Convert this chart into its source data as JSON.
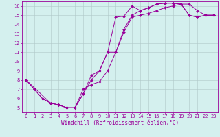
{
  "title": "",
  "xlabel": "Windchill (Refroidissement éolien,°C)",
  "bg_color": "#d4f0ee",
  "line_color": "#990099",
  "grid_color": "#b0c8c8",
  "xlim": [
    -0.5,
    23.5
  ],
  "ylim": [
    4.5,
    16.5
  ],
  "xticks": [
    0,
    1,
    2,
    3,
    4,
    5,
    6,
    7,
    8,
    9,
    10,
    11,
    12,
    13,
    14,
    15,
    16,
    17,
    18,
    19,
    20,
    21,
    22,
    23
  ],
  "yticks": [
    5,
    6,
    7,
    8,
    9,
    10,
    11,
    12,
    13,
    14,
    15,
    16
  ],
  "series1_x": [
    0,
    1,
    2,
    3,
    4,
    5,
    6,
    7,
    8,
    9,
    10,
    11,
    12,
    13,
    14,
    15,
    16,
    17,
    18,
    19,
    20,
    21,
    22,
    23
  ],
  "series1_y": [
    8,
    7,
    6,
    5.5,
    5.3,
    5.0,
    5.0,
    6.5,
    8.5,
    9.0,
    11.0,
    14.8,
    14.9,
    16.0,
    15.5,
    15.8,
    16.2,
    16.3,
    16.3,
    16.2,
    15.0,
    14.8,
    15.0,
    15.0
  ],
  "series2_x": [
    0,
    1,
    2,
    3,
    4,
    5,
    6,
    7,
    8,
    9,
    10,
    11,
    12,
    13,
    14,
    15,
    16,
    17,
    18,
    19,
    20,
    21,
    22,
    23
  ],
  "series2_y": [
    8,
    7,
    6,
    5.5,
    5.3,
    5.0,
    5.0,
    7.0,
    7.5,
    7.8,
    9.0,
    11.0,
    13.2,
    14.8,
    15.0,
    15.2,
    15.5,
    15.8,
    16.0,
    16.2,
    16.2,
    15.5,
    15.0,
    15.0
  ],
  "series3_x": [
    0,
    3,
    4,
    5,
    6,
    7,
    8,
    9,
    10,
    11,
    12,
    13,
    14,
    15,
    16,
    17,
    18,
    19,
    20,
    21,
    22,
    23
  ],
  "series3_y": [
    8,
    5.5,
    5.3,
    5.0,
    5.0,
    6.5,
    8.0,
    9.0,
    11.0,
    11.0,
    13.5,
    15.0,
    15.5,
    15.8,
    16.2,
    16.3,
    16.3,
    16.2,
    15.0,
    14.8,
    15.0,
    15.0
  ],
  "marker_size": 2.0,
  "linewidth": 0.7,
  "xlabel_fontsize": 5.5,
  "tick_fontsize": 5.0
}
